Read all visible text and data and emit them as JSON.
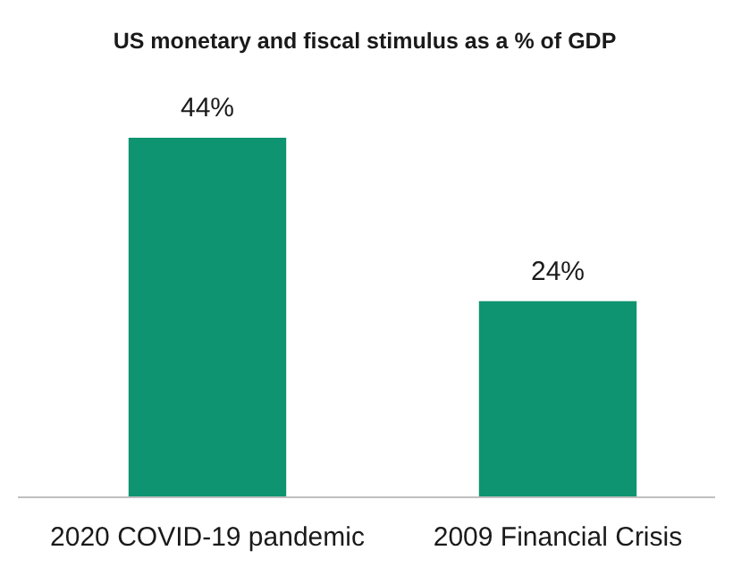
{
  "chart_data": {
    "type": "bar",
    "title": "US monetary and fiscal stimulus as a % of GDP",
    "categories": [
      "2020 COVID-19 pandemic",
      "2009 Financial Crisis"
    ],
    "values": [
      44,
      24
    ],
    "value_labels": [
      "44%",
      "24%"
    ],
    "color": "#0e9470"
  }
}
